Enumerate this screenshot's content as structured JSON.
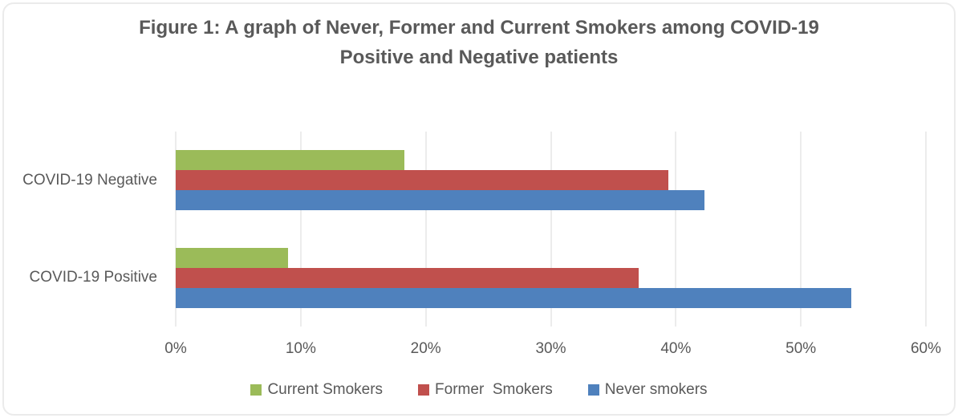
{
  "figure": {
    "title_line1": "Figure 1: A graph of Never, Former and Current Smokers among COVID-19",
    "title_line2": "Positive and Negative patients"
  },
  "chart_data": {
    "type": "bar",
    "orientation": "horizontal",
    "title": "Figure 1: A graph of Never, Former and Current Smokers among COVID-19 Positive and Negative patients",
    "categories": [
      "COVID-19 Negative",
      "COVID-19 Positive"
    ],
    "series": [
      {
        "name": "Current Smokers",
        "color": "#9BBB59",
        "values": [
          18.3,
          9.0
        ]
      },
      {
        "name": "Former  Smokers",
        "color": "#C0504D",
        "values": [
          39.4,
          37.0
        ]
      },
      {
        "name": "Never smokers",
        "color": "#4F81BD",
        "values": [
          42.3,
          54.0
        ]
      }
    ],
    "x_axis": {
      "min": 0,
      "max": 60,
      "unit": "%",
      "ticks": [
        "0%",
        "10%",
        "20%",
        "30%",
        "40%",
        "50%",
        "60%"
      ]
    },
    "grid": true,
    "gridline_color": "#d9d9d9",
    "legend_position": "bottom",
    "text_color": "#595959"
  }
}
